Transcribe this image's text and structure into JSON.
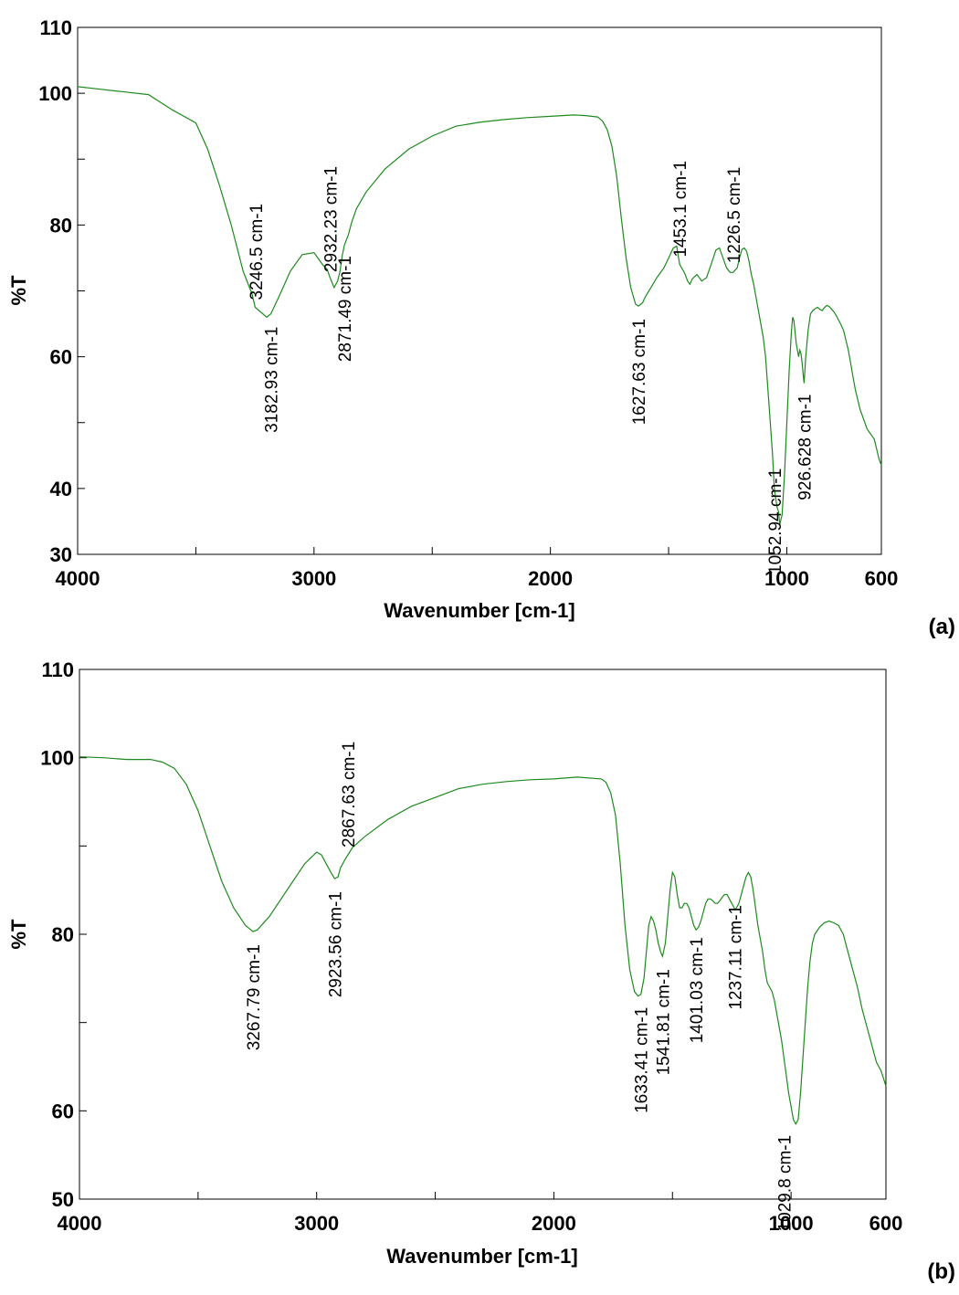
{
  "chart_data": [
    {
      "type": "line",
      "panel_label": "(a)",
      "xlabel": "Wavenumber [cm-1]",
      "ylabel": "%T",
      "xlim": [
        4000,
        600
      ],
      "ylim": [
        30,
        110
      ],
      "xticks": [
        "4000",
        "3000",
        "2000",
        "1000",
        "600"
      ],
      "yticks": [
        "30",
        "40",
        "60",
        "80",
        "100",
        "110"
      ],
      "line_color": "#1e8a1e",
      "series": [
        {
          "x": [
            4000,
            3900,
            3800,
            3700,
            3600,
            3500,
            3450,
            3400,
            3350,
            3300,
            3262,
            3249,
            3200,
            3183,
            3150,
            3100,
            3050,
            3000,
            2980,
            2960,
            2945,
            2932,
            2915,
            2900,
            2890,
            2880,
            2871,
            2855,
            2840,
            2820,
            2780,
            2700,
            2600,
            2500,
            2400,
            2300,
            2200,
            2100,
            2000,
            1900,
            1850,
            1800,
            1780,
            1760,
            1740,
            1720,
            1700,
            1680,
            1660,
            1640,
            1628,
            1610,
            1600,
            1580,
            1550,
            1520,
            1500,
            1480,
            1466,
            1460,
            1453,
            1445,
            1440,
            1430,
            1420,
            1410,
            1400,
            1380,
            1360,
            1340,
            1320,
            1300,
            1285,
            1270,
            1255,
            1240,
            1227,
            1210,
            1200,
            1190,
            1180,
            1170,
            1160,
            1150,
            1140,
            1130,
            1120,
            1110,
            1100,
            1090,
            1080,
            1070,
            1060,
            1053,
            1045,
            1040,
            1035,
            1030,
            1020,
            1010,
            1000,
            990,
            980,
            975,
            970,
            960,
            950,
            945,
            940,
            935,
            930,
            927,
            920,
            910,
            900,
            890,
            880,
            870,
            860,
            850,
            840,
            830,
            820,
            810,
            800,
            790,
            780,
            770,
            760,
            750,
            740,
            730,
            720,
            710,
            700,
            690,
            680,
            670,
            660,
            650,
            640,
            630,
            620,
            610,
            600
          ],
          "y": [
            101,
            100.6,
            100.2,
            99.8,
            97.5,
            95.5,
            91.5,
            86,
            80,
            73,
            69.5,
            67.5,
            66,
            66.5,
            69,
            73,
            75.5,
            75.8,
            74.8,
            73.8,
            73.3,
            72,
            70.5,
            71.5,
            73,
            75.5,
            77,
            78.5,
            80.5,
            82.5,
            85,
            88.5,
            91.5,
            93.5,
            95,
            95.6,
            96,
            96.3,
            96.5,
            96.7,
            96.6,
            96.4,
            95.8,
            94.5,
            92,
            87.5,
            81,
            75,
            70.5,
            68,
            67.7,
            68.2,
            69,
            70.2,
            72,
            73.5,
            75,
            76.5,
            76.8,
            75.5,
            74,
            73.5,
            73.2,
            72.5,
            71.5,
            71,
            71.8,
            72.5,
            71.5,
            72,
            74,
            76.2,
            76.5,
            75,
            73.5,
            72.8,
            72.8,
            73.5,
            75,
            76.3,
            76.5,
            76,
            74.5,
            72.5,
            71,
            69,
            67,
            65,
            63,
            60,
            55,
            50,
            45,
            40,
            38,
            37,
            36.5,
            34.5,
            36,
            42,
            50,
            58,
            64,
            66,
            65.5,
            62,
            60,
            61,
            60.5,
            59,
            57,
            56,
            60,
            64,
            66.5,
            67,
            67.3,
            67.5,
            67.2,
            67,
            67.5,
            67.8,
            67.6,
            67.2,
            66.8,
            66.2,
            65.5,
            64.8,
            64,
            62.5,
            61,
            59,
            57,
            55,
            53.5,
            52,
            51,
            50,
            49,
            48.5,
            48,
            47.5,
            46,
            44.5,
            43.5
          ]
        }
      ],
      "annotations": [
        {
          "text": "3246.5 cm-1",
          "x": 3246.5,
          "y": 67.5
        },
        {
          "text": "3182.93 cm-1",
          "x": 3182.93,
          "y": 66.5
        },
        {
          "text": "2932.23 cm-1",
          "x": 2932.23,
          "y": 72
        },
        {
          "text": "2871.49 cm-1",
          "x": 2871.49,
          "y": 77
        },
        {
          "text": "1627.63 cm-1",
          "x": 1627.63,
          "y": 67.7
        },
        {
          "text": "1453.1 cm-1",
          "x": 1453.1,
          "y": 74
        },
        {
          "text": "1226.5 cm-1",
          "x": 1226.5,
          "y": 72.8
        },
        {
          "text": "1052.94 cm-1",
          "x": 1052.94,
          "y": 45
        },
        {
          "text": "926.628 cm-1",
          "x": 926.628,
          "y": 56
        }
      ]
    },
    {
      "type": "line",
      "panel_label": "(b)",
      "xlabel": "Wavenumber [cm-1]",
      "ylabel": "%T",
      "xlim": [
        4000,
        600
      ],
      "ylim": [
        50,
        110
      ],
      "xticks": [
        "4000",
        "3000",
        "2000",
        "1000",
        "600"
      ],
      "yticks": [
        "50",
        "60",
        "80",
        "100",
        "110"
      ],
      "line_color": "#1e8a1e",
      "series": [
        {
          "x": [
            4000,
            3900,
            3800,
            3700,
            3650,
            3600,
            3550,
            3500,
            3450,
            3400,
            3350,
            3300,
            3268,
            3250,
            3200,
            3150,
            3100,
            3050,
            3000,
            2980,
            2960,
            2940,
            2924,
            2910,
            2900,
            2880,
            2868,
            2850,
            2800,
            2700,
            2600,
            2500,
            2400,
            2300,
            2200,
            2100,
            2000,
            1900,
            1800,
            1780,
            1760,
            1740,
            1720,
            1700,
            1680,
            1660,
            1645,
            1633,
            1620,
            1610,
            1600,
            1590,
            1580,
            1570,
            1560,
            1550,
            1542,
            1530,
            1520,
            1510,
            1500,
            1490,
            1480,
            1470,
            1460,
            1450,
            1440,
            1430,
            1420,
            1410,
            1401,
            1390,
            1380,
            1370,
            1360,
            1350,
            1340,
            1330,
            1320,
            1310,
            1300,
            1290,
            1280,
            1270,
            1260,
            1250,
            1240,
            1237,
            1230,
            1220,
            1210,
            1200,
            1190,
            1180,
            1170,
            1160,
            1150,
            1140,
            1130,
            1120,
            1110,
            1100,
            1090,
            1080,
            1070,
            1060,
            1050,
            1040,
            1030,
            1020,
            1010,
            1000,
            990,
            980,
            970,
            960,
            950,
            940,
            930,
            920,
            910,
            900,
            880,
            860,
            840,
            820,
            800,
            780,
            760,
            740,
            720,
            700,
            680,
            660,
            640,
            620,
            600
          ],
          "y": [
            100.1,
            100,
            99.8,
            99.8,
            99.5,
            98.8,
            97,
            94,
            90,
            86,
            83,
            81,
            80.3,
            80.5,
            82,
            84,
            86,
            88,
            89.3,
            89,
            88,
            87,
            86.3,
            86.5,
            87.5,
            88.5,
            89,
            89.8,
            91,
            93,
            94.5,
            95.5,
            96.5,
            97,
            97.3,
            97.5,
            97.6,
            97.8,
            97.6,
            97.2,
            96,
            93.5,
            88,
            81,
            76,
            73.5,
            73,
            73.2,
            75,
            78,
            81,
            82,
            81.5,
            80.5,
            79,
            78,
            77.5,
            79,
            82,
            85,
            87,
            86.5,
            84.5,
            83,
            83,
            83.5,
            83.5,
            83,
            82,
            81,
            80.5,
            80.8,
            81.5,
            82.5,
            83.5,
            84,
            84,
            83.8,
            83.5,
            83.5,
            83.8,
            84.2,
            84.5,
            84.5,
            84,
            83.5,
            83,
            82.8,
            83,
            83.5,
            84.5,
            85.5,
            86.5,
            87,
            86.5,
            85,
            83,
            81,
            79.5,
            78,
            76,
            74.5,
            74,
            73.5,
            72.5,
            71,
            69.5,
            68,
            66,
            64,
            62,
            60.5,
            59,
            58.5,
            59,
            62,
            66,
            70,
            74,
            77,
            79,
            80,
            80.8,
            81.3,
            81.5,
            81.3,
            81,
            80,
            78,
            76,
            74,
            71.5,
            69.5,
            67.5,
            65.5,
            64.5,
            62.8
          ]
        }
      ],
      "annotations": [
        {
          "text": "3267.79 cm-1",
          "x": 3267.79,
          "y": 80.3
        },
        {
          "text": "2923.56 cm-1",
          "x": 2923.56,
          "y": 86.3
        },
        {
          "text": "2867.63 cm-1",
          "x": 2867.63,
          "y": 89
        },
        {
          "text": "1633.41 cm-1",
          "x": 1633.41,
          "y": 73.2
        },
        {
          "text": "1541.81 cm-1",
          "x": 1541.81,
          "y": 77.5
        },
        {
          "text": "1401.03 cm-1",
          "x": 1401.03,
          "y": 80.5
        },
        {
          "text": "1237.11 cm-1",
          "x": 1237.11,
          "y": 82.8
        },
        {
          "text": "1029.8 cm-1",
          "x": 1029.8,
          "y": 58.5
        }
      ]
    }
  ]
}
